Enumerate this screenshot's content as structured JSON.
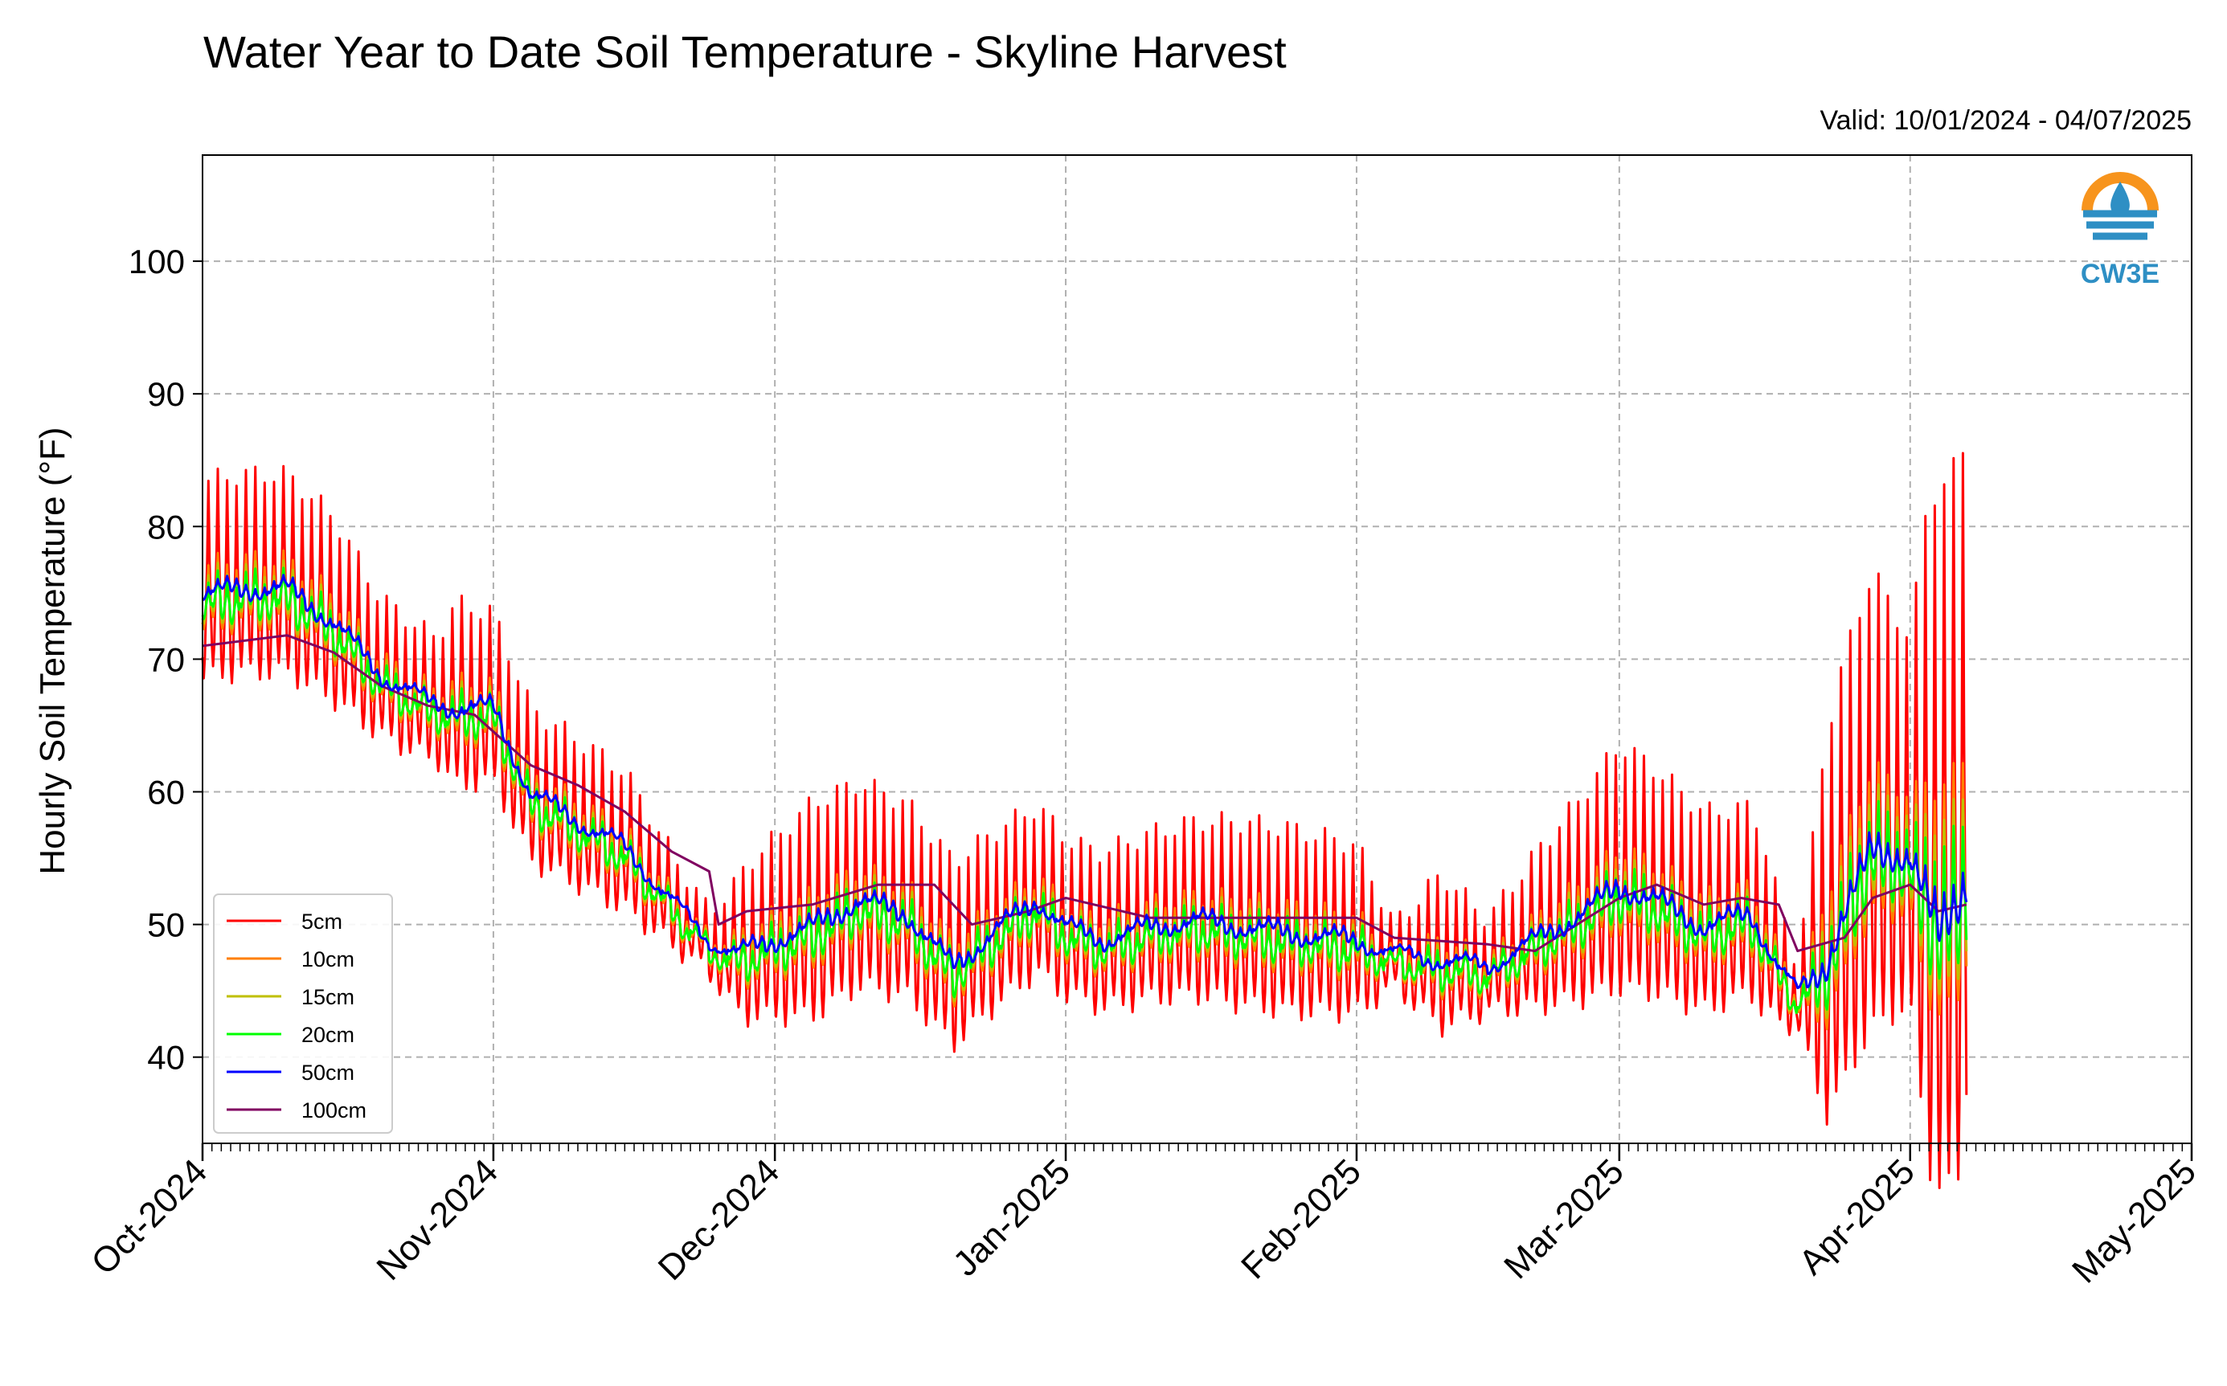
{
  "page": {
    "title": "Water Year to Date Soil Temperature - Skyline Harvest",
    "valid": "Valid: 10/01/2024 - 04/07/2025",
    "logo_text": "CW3E"
  },
  "colors": {
    "5cm": "#ff0000",
    "10cm": "#ff7f00",
    "15cm": "#bfbf00",
    "20cm": "#00ff00",
    "50cm": "#0000ff",
    "100cm": "#800060",
    "grid": "#b0b0b0",
    "logo_orange": "#f7941d",
    "logo_blue": "#2e8fc4"
  },
  "chart_data": {
    "type": "line",
    "title": "Water Year to Date Soil Temperature - Skyline Harvest",
    "ylabel": "Hourly Soil Temperature (°F)",
    "ylim": [
      33.5,
      108
    ],
    "yticks": [
      40,
      50,
      60,
      70,
      80,
      90,
      100
    ],
    "xlim": [
      "2024-10-01",
      "2025-05-01"
    ],
    "xticks": [
      {
        "date": "2024-10-01",
        "label": "Oct-2024"
      },
      {
        "date": "2024-11-01",
        "label": "Nov-2024"
      },
      {
        "date": "2024-12-01",
        "label": "Dec-2024"
      },
      {
        "date": "2025-01-01",
        "label": "Jan-2025"
      },
      {
        "date": "2025-02-01",
        "label": "Feb-2025"
      },
      {
        "date": "2025-03-01",
        "label": "Mar-2025"
      },
      {
        "date": "2025-04-01",
        "label": "Apr-2025"
      },
      {
        "date": "2025-05-01",
        "label": "May-2025"
      }
    ],
    "grid": true,
    "legend_position": "lower-left",
    "baseline": {
      "x": [
        "2024-10-01",
        "2024-10-05",
        "2024-10-10",
        "2024-10-15",
        "2024-10-20",
        "2024-10-25",
        "2024-10-28",
        "2024-11-01",
        "2024-11-05",
        "2024-11-10",
        "2024-11-15",
        "2024-11-20",
        "2024-11-24",
        "2024-11-27",
        "2024-12-01",
        "2024-12-05",
        "2024-12-10",
        "2024-12-15",
        "2024-12-20",
        "2024-12-25",
        "2024-12-29",
        "2025-01-01",
        "2025-01-05",
        "2025-01-10",
        "2025-01-15",
        "2025-01-20",
        "2025-01-25",
        "2025-02-01",
        "2025-02-05",
        "2025-02-10",
        "2025-02-15",
        "2025-02-20",
        "2025-02-25",
        "2025-03-01",
        "2025-03-05",
        "2025-03-10",
        "2025-03-15",
        "2025-03-18",
        "2025-03-20",
        "2025-03-23",
        "2025-03-25",
        "2025-03-28",
        "2025-04-01",
        "2025-04-04",
        "2025-04-07"
      ],
      "values": [
        74,
        74.5,
        74.5,
        72,
        68,
        66,
        65.5,
        65.5,
        59,
        57,
        55,
        51,
        48,
        47,
        48,
        49,
        51,
        50,
        46,
        49,
        51,
        49,
        48,
        49,
        49.5,
        49,
        48.5,
        48,
        47,
        46.5,
        46,
        48,
        50,
        52,
        51,
        49,
        50,
        46,
        44,
        46,
        50,
        55,
        54,
        49,
        52
      ]
    },
    "series": [
      {
        "name": "5cm",
        "color": "#ff0000",
        "offset": 0,
        "amp": 1.0,
        "smooth": 0
      },
      {
        "name": "10cm",
        "color": "#ff7f00",
        "offset": 0,
        "amp": 0.32,
        "smooth": 0
      },
      {
        "name": "15cm",
        "color": "#bfbf00",
        "offset": 0,
        "amp": 0.24,
        "smooth": 0
      },
      {
        "name": "20cm",
        "color": "#00ff00",
        "offset": 0,
        "amp": 0.18,
        "smooth": 0
      },
      {
        "name": "50cm",
        "color": "#0000ff",
        "offset": 0.8,
        "amp": 0.06,
        "smooth": 1
      },
      {
        "name": "100cm",
        "color": "#800060",
        "x": [
          "2024-10-01",
          "2024-10-10",
          "2024-10-15",
          "2024-10-20",
          "2024-10-25",
          "2024-10-30",
          "2024-11-05",
          "2024-11-10",
          "2024-11-15",
          "2024-11-20",
          "2024-11-24",
          "2024-11-25",
          "2024-11-28",
          "2024-12-05",
          "2024-12-12",
          "2024-12-18",
          "2024-12-22",
          "2024-12-28",
          "2025-01-01",
          "2025-01-10",
          "2025-01-20",
          "2025-02-01",
          "2025-02-05",
          "2025-02-15",
          "2025-02-20",
          "2025-03-01",
          "2025-03-05",
          "2025-03-10",
          "2025-03-14",
          "2025-03-18",
          "2025-03-20",
          "2025-03-25",
          "2025-03-28",
          "2025-04-01",
          "2025-04-04",
          "2025-04-07"
        ],
        "values": [
          71,
          71.8,
          70.5,
          68,
          66.5,
          65.8,
          62,
          60.5,
          58.5,
          55.5,
          54,
          50,
          51,
          51.5,
          53,
          53,
          50,
          51,
          52,
          50.5,
          50.5,
          50.5,
          49,
          48.5,
          48,
          52,
          53,
          51.5,
          52,
          51.5,
          48,
          49,
          52,
          53,
          51,
          51.5
        ]
      }
    ],
    "daily_amplitude_5cm": {
      "x": [
        "2024-10-01",
        "2024-10-10",
        "2024-10-15",
        "2024-10-20",
        "2024-10-26",
        "2024-10-28",
        "2024-11-05",
        "2024-11-15",
        "2024-11-20",
        "2024-11-24",
        "2024-11-28",
        "2024-12-05",
        "2024-12-20",
        "2024-12-28",
        "2025-01-03",
        "2025-01-20",
        "2025-01-25",
        "2025-02-01",
        "2025-02-05",
        "2025-02-10",
        "2025-02-15",
        "2025-02-20",
        "2025-03-01",
        "2025-03-10",
        "2025-03-16",
        "2025-03-20",
        "2025-03-23",
        "2025-03-25",
        "2025-03-28",
        "2025-04-01",
        "2025-04-03",
        "2025-04-07"
      ],
      "values": [
        13,
        13,
        12,
        9,
        8,
        12,
        10,
        9,
        6,
        4,
        10,
        14,
        12,
        11,
        10,
        12,
        12,
        11,
        4,
        10,
        6,
        10,
        16,
        13,
        12,
        4,
        25,
        28,
        30,
        24,
        45,
        48
      ]
    }
  },
  "legend": {
    "items": [
      "5cm",
      "10cm",
      "15cm",
      "20cm",
      "50cm",
      "100cm"
    ]
  }
}
